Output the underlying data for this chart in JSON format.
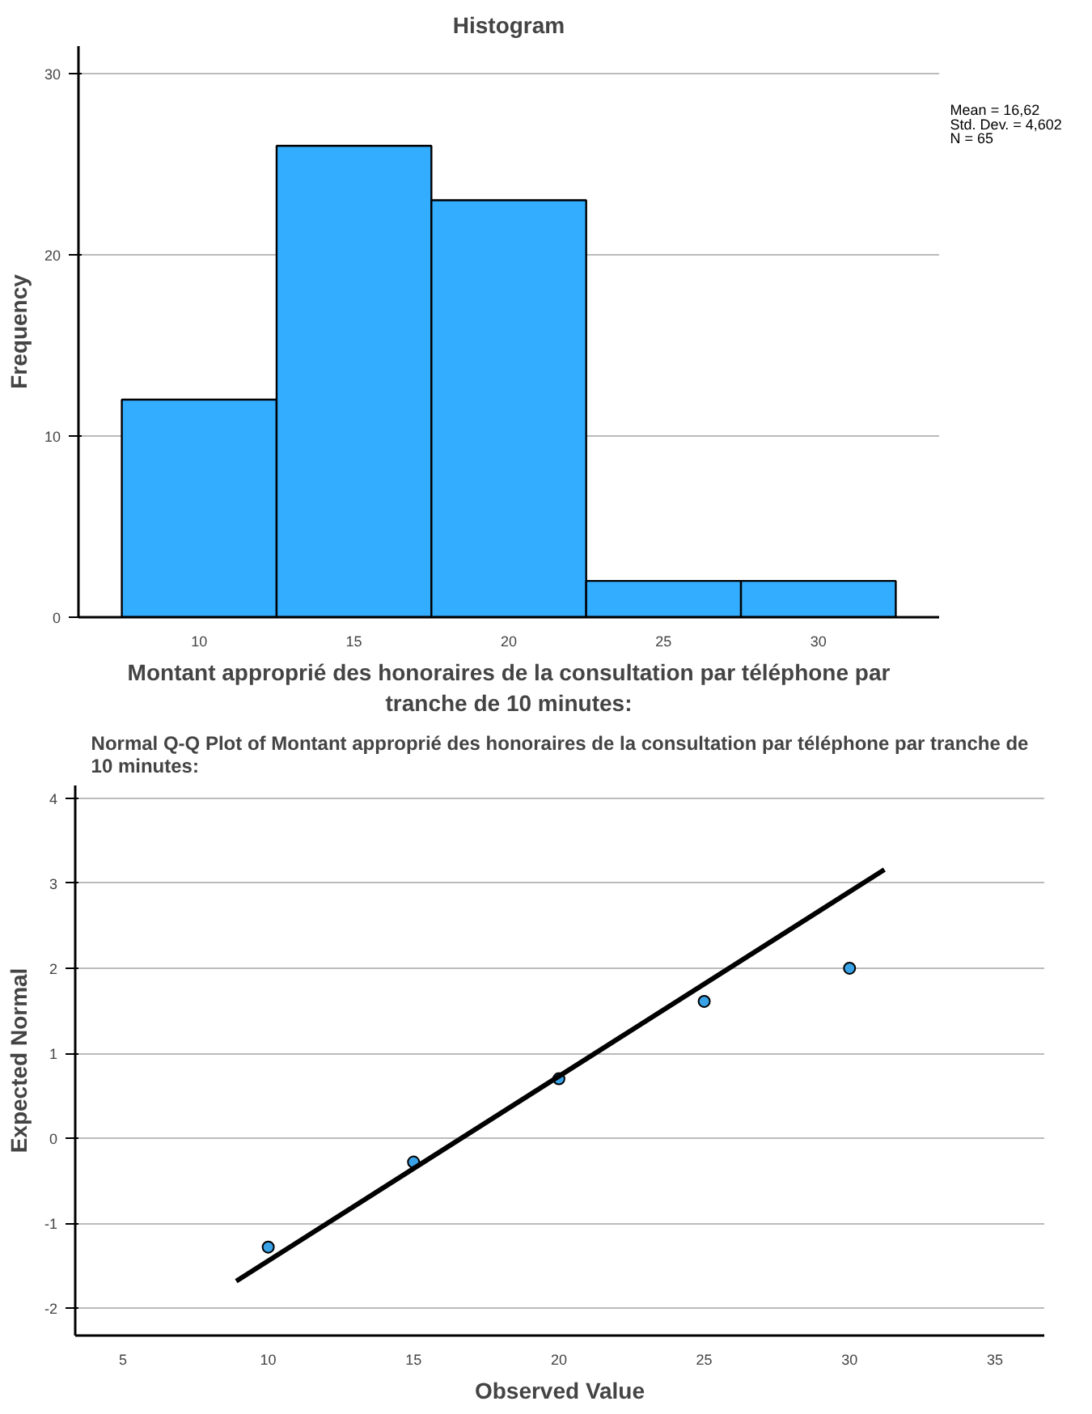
{
  "chart_data": [
    {
      "type": "histogram",
      "title": "Histogram",
      "xlabel": "Montant approprié des honoraires de la consultation par téléphone par tranche de 10 minutes:",
      "ylabel": "Frequency",
      "bins": [
        7.5,
        12.5,
        17.5,
        22.5,
        27.5,
        32.5
      ],
      "values": [
        12,
        26,
        23,
        2,
        2
      ],
      "color": "#33adff",
      "xlim": [
        6.1,
        33.9
      ],
      "xticks": [
        10,
        15,
        20,
        25,
        30
      ],
      "ylim": [
        0,
        31.5
      ],
      "yticks": [
        0,
        10,
        20,
        30
      ],
      "grid": "y",
      "annotations": [
        "Mean = 16,62",
        "Std. Dev. = 4,602",
        "N = 65"
      ]
    },
    {
      "type": "scatter",
      "title": "Normal Q-Q Plot of Montant approprié des honoraires de la consultation par téléphone par tranche de 10 minutes:",
      "xlabel": "Observed Value",
      "ylabel": "Expected Normal",
      "x": [
        10,
        15,
        20,
        25,
        30
      ],
      "series": [
        {
          "type": "scatter",
          "color": "#3aa3e8",
          "values": [
            -1.28,
            -0.28,
            0.7,
            1.61,
            2.0
          ],
          "marker": "circle"
        },
        {
          "type": "line",
          "color": "#000000",
          "x": [
            8.9,
            31.2
          ],
          "values": [
            -1.68,
            3.16
          ],
          "line_style": "solid"
        }
      ],
      "xlim": [
        3.36,
        36.7
      ],
      "xticks": [
        5,
        10,
        15,
        20,
        25,
        30,
        35
      ],
      "ylim": [
        -2.32,
        4.15
      ],
      "yticks": [
        -2,
        -1,
        0,
        1,
        2,
        3,
        4
      ],
      "grid": "y"
    }
  ]
}
